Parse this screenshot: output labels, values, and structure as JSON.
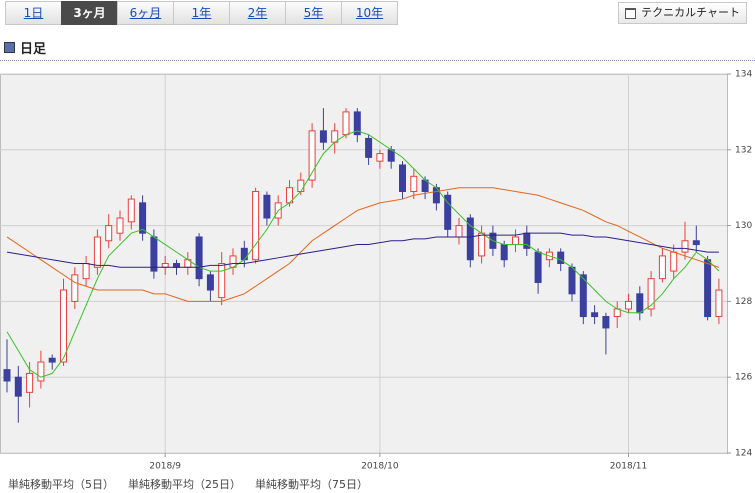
{
  "tabs": [
    "1日",
    "3ヶ月",
    "6ヶ月",
    "1年",
    "2年",
    "5年",
    "10年"
  ],
  "active_tab": 1,
  "tech_button": "テクニカルチャート",
  "section_title": "日足",
  "chart_data": {
    "type": "candlestick",
    "categories": [
      null,
      null,
      null,
      null,
      null,
      null,
      null,
      null,
      null,
      null,
      null,
      null,
      null,
      null,
      "2018/9",
      null,
      null,
      null,
      null,
      null,
      null,
      null,
      null,
      null,
      null,
      null,
      null,
      null,
      null,
      null,
      null,
      null,
      null,
      "2018/10",
      null,
      null,
      null,
      null,
      null,
      null,
      null,
      null,
      null,
      null,
      null,
      null,
      null,
      null,
      null,
      null,
      null,
      null,
      null,
      null,
      null,
      "2018/11",
      null,
      null,
      null,
      null,
      null,
      null,
      null,
      null
    ],
    "open": [
      126.2,
      126.0,
      125.6,
      125.9,
      126.5,
      126.4,
      128.0,
      128.6,
      128.9,
      129.6,
      129.8,
      130.1,
      130.6,
      129.7,
      128.9,
      129.0,
      128.9,
      129.7,
      128.7,
      128.1,
      128.9,
      129.4,
      129.1,
      130.8,
      130.2,
      130.6,
      130.9,
      131.2,
      132.5,
      132.2,
      132.4,
      133.0,
      132.3,
      131.7,
      132.0,
      131.6,
      130.9,
      131.2,
      131.0,
      130.8,
      129.7,
      130.2,
      129.2,
      129.8,
      129.5,
      129.5,
      129.8,
      129.3,
      129.1,
      129.3,
      128.9,
      128.7,
      127.7,
      127.6,
      127.6,
      127.8,
      128.2,
      127.8,
      128.6,
      128.8,
      129.3,
      129.6,
      129.1,
      127.6
    ],
    "high": [
      127.0,
      126.3,
      126.4,
      126.7,
      126.6,
      128.6,
      128.9,
      129.2,
      129.9,
      130.3,
      130.4,
      130.8,
      130.8,
      129.9,
      129.2,
      129.1,
      129.3,
      129.8,
      128.8,
      129.3,
      129.4,
      129.6,
      131.0,
      130.9,
      130.8,
      131.2,
      131.4,
      132.7,
      133.1,
      132.7,
      133.1,
      133.1,
      132.4,
      132.0,
      132.1,
      131.7,
      131.5,
      131.3,
      131.1,
      130.9,
      130.2,
      130.3,
      130.0,
      130.0,
      129.6,
      129.9,
      130.0,
      129.4,
      129.4,
      129.4,
      129.0,
      128.8,
      127.9,
      127.7,
      128.0,
      128.2,
      128.4,
      128.8,
      129.4,
      129.5,
      130.1,
      130.0,
      129.2,
      128.6
    ],
    "low": [
      125.6,
      124.8,
      125.2,
      125.7,
      126.2,
      126.3,
      127.8,
      128.4,
      128.7,
      129.4,
      129.6,
      129.9,
      129.6,
      128.6,
      128.7,
      128.7,
      128.7,
      128.4,
      128.0,
      127.9,
      128.7,
      128.9,
      129.0,
      130.0,
      130.0,
      130.5,
      130.8,
      131.0,
      132.0,
      131.9,
      132.3,
      132.2,
      131.6,
      131.5,
      131.5,
      130.7,
      130.7,
      130.7,
      130.4,
      129.7,
      129.5,
      128.9,
      129.0,
      129.2,
      128.9,
      129.3,
      129.2,
      128.2,
      128.9,
      128.8,
      128.0,
      127.4,
      127.4,
      126.6,
      127.3,
      127.7,
      127.5,
      127.6,
      128.5,
      128.6,
      129.1,
      129.3,
      127.5,
      127.4
    ],
    "close": [
      125.9,
      125.5,
      126.1,
      126.4,
      126.4,
      128.3,
      128.7,
      129.0,
      129.7,
      130.0,
      130.2,
      130.7,
      129.8,
      128.8,
      129.0,
      128.9,
      129.1,
      128.6,
      128.3,
      129.0,
      129.2,
      129.1,
      130.9,
      130.2,
      130.6,
      131.0,
      131.2,
      132.5,
      132.2,
      132.5,
      133.0,
      132.4,
      131.8,
      131.9,
      131.7,
      130.9,
      131.3,
      130.9,
      130.6,
      129.9,
      130.0,
      129.1,
      129.8,
      129.4,
      129.1,
      129.7,
      129.4,
      128.5,
      129.3,
      129.0,
      128.2,
      127.6,
      127.6,
      127.3,
      127.8,
      128.0,
      127.7,
      128.6,
      129.2,
      129.3,
      129.6,
      129.5,
      127.6,
      128.3
    ],
    "up_color": "#e8413b",
    "down_color": "#3b3f9e",
    "series": [
      {
        "name": "単純移動平均（5日）",
        "color": "#3cc02a",
        "values": [
          127.2,
          126.7,
          126.2,
          126.0,
          126.1,
          126.5,
          127.2,
          127.9,
          128.6,
          129.2,
          129.5,
          129.8,
          129.9,
          129.7,
          129.5,
          129.3,
          129.1,
          128.9,
          128.8,
          128.8,
          128.9,
          129.1,
          129.5,
          129.9,
          130.4,
          130.6,
          130.9,
          131.4,
          131.9,
          132.2,
          132.4,
          132.5,
          132.4,
          132.2,
          132.0,
          131.8,
          131.5,
          131.2,
          131.0,
          130.6,
          130.3,
          130.0,
          129.8,
          129.6,
          129.5,
          129.5,
          129.5,
          129.3,
          129.2,
          129.1,
          128.9,
          128.6,
          128.3,
          128.0,
          127.8,
          127.7,
          127.7,
          127.9,
          128.2,
          128.6,
          128.9,
          129.3,
          129.1,
          128.8
        ]
      },
      {
        "name": "単純移動平均（25日）",
        "color": "#e8641b",
        "values": [
          129.7,
          129.5,
          129.3,
          129.1,
          128.9,
          128.7,
          128.5,
          128.4,
          128.3,
          128.3,
          128.3,
          128.3,
          128.3,
          128.2,
          128.2,
          128.1,
          128.0,
          128.0,
          128.0,
          128.0,
          128.1,
          128.2,
          128.4,
          128.6,
          128.8,
          129.0,
          129.3,
          129.6,
          129.8,
          130.0,
          130.2,
          130.4,
          130.5,
          130.6,
          130.65,
          130.7,
          130.8,
          130.85,
          130.9,
          130.95,
          131.0,
          131.0,
          131.0,
          131.0,
          130.95,
          130.9,
          130.85,
          130.8,
          130.7,
          130.6,
          130.5,
          130.4,
          130.25,
          130.1,
          130.0,
          129.85,
          129.7,
          129.55,
          129.4,
          129.3,
          129.2,
          129.1,
          129.0,
          128.9
        ]
      },
      {
        "name": "単純移動平均（75日）",
        "color": "#2b1e8a",
        "values": [
          129.3,
          129.25,
          129.2,
          129.15,
          129.1,
          129.05,
          129.0,
          129.0,
          128.95,
          128.95,
          128.9,
          128.9,
          128.9,
          128.9,
          128.9,
          128.9,
          128.9,
          128.9,
          128.95,
          128.95,
          129.0,
          129.0,
          129.05,
          129.1,
          129.15,
          129.2,
          129.25,
          129.3,
          129.35,
          129.4,
          129.45,
          129.5,
          129.5,
          129.55,
          129.6,
          129.6,
          129.65,
          129.65,
          129.7,
          129.7,
          129.7,
          129.7,
          129.75,
          129.75,
          129.75,
          129.75,
          129.8,
          129.8,
          129.8,
          129.8,
          129.75,
          129.75,
          129.7,
          129.7,
          129.65,
          129.6,
          129.55,
          129.5,
          129.45,
          129.4,
          129.4,
          129.35,
          129.3,
          129.3
        ]
      }
    ],
    "ylim": [
      124,
      134
    ],
    "yticks": [
      124,
      126,
      128,
      130,
      132,
      134
    ],
    "grid": true
  }
}
